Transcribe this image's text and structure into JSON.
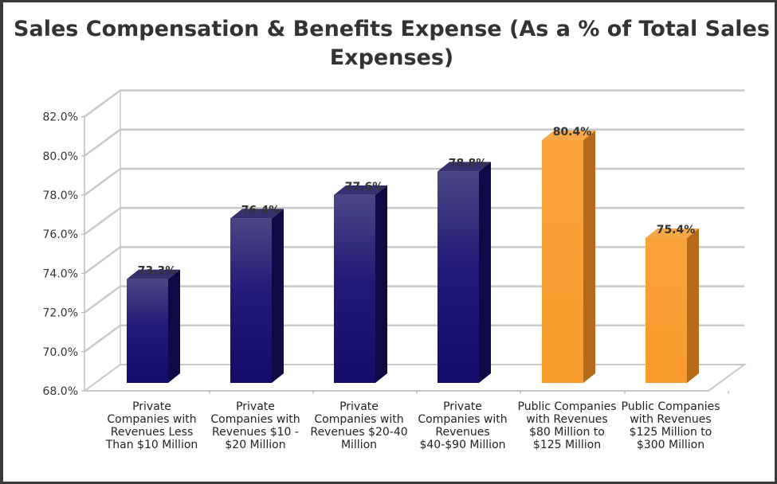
{
  "chart_data": {
    "type": "bar",
    "title": "Sales Compensation & Benefits Expense (As a % of Total Sales Expenses)",
    "categories": [
      "Private Companies with Revenues Less Than $10 Million",
      "Private Companies with Revenues $10 - $20 Million",
      "Private Companies with Revenues $20-40 Million",
      "Private Companies with Revenues $40-$90 Million",
      "Public Companies with Revenues $80 Million to $125 Million",
      "Public Companies with Revenues $125 Million to $300 Million"
    ],
    "values": [
      73.3,
      76.4,
      77.6,
      78.8,
      80.4,
      75.4
    ],
    "data_labels": [
      "73.3%",
      "76.4%",
      "77.6%",
      "78.8%",
      "80.4%",
      "75.4%"
    ],
    "colors": [
      "#1a1470",
      "#1a1470",
      "#1a1470",
      "#1a1470",
      "#f99d31",
      "#f99d31"
    ],
    "ylim": [
      68,
      82
    ],
    "yticks": [
      "68.0%",
      "70.0%",
      "72.0%",
      "74.0%",
      "76.0%",
      "78.0%",
      "80.0%",
      "82.0%"
    ],
    "xlabel": "",
    "ylabel": "",
    "grid": true,
    "style": "3d"
  }
}
